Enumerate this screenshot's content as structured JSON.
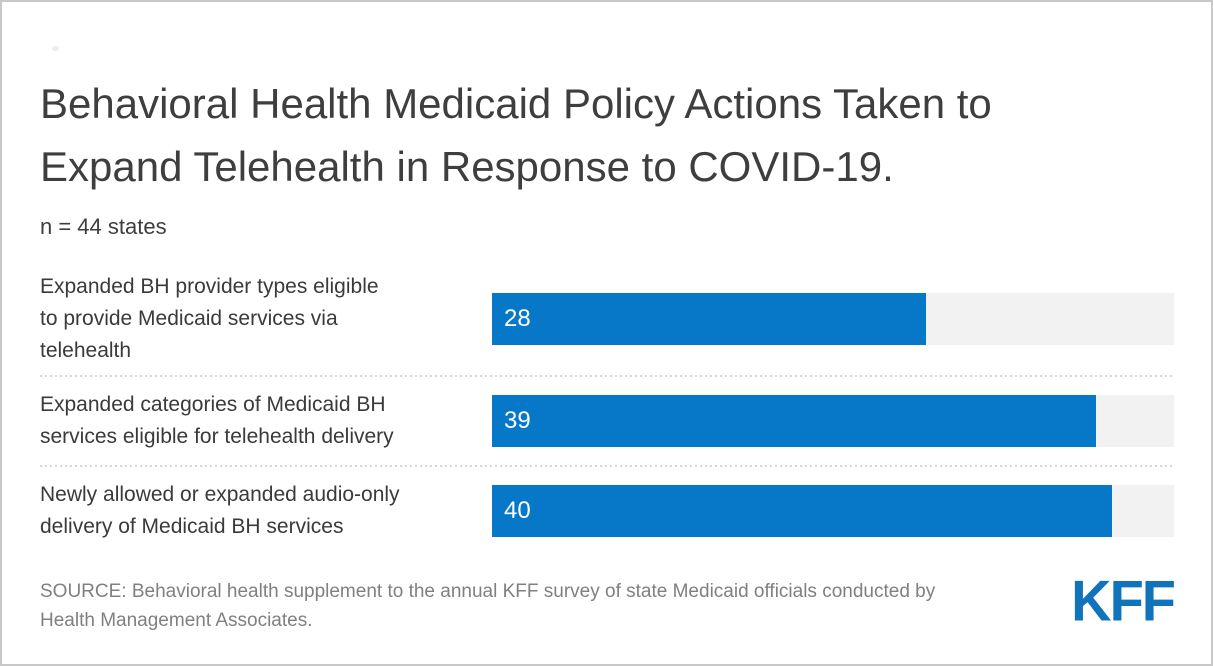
{
  "card": {
    "background": "#ffffff",
    "border_color": "#c8c8c8"
  },
  "header": {
    "title_lines": [
      "Behavioral Health Medicaid Policy Actions Taken to",
      "Expand Telehealth in Response to COVID-19."
    ],
    "subtitle": "n = 44 states"
  },
  "chart_data": {
    "type": "bar",
    "orientation": "horizontal",
    "title": "Behavioral Health Medicaid Policy Actions Taken to Expand Telehealth in Response to COVID-19.",
    "subtitle": "n = 44 states",
    "categories": [
      "Expanded BH provider types eligible\nto provide Medicaid services via\ntelehealth",
      "Expanded categories of Medicaid BH\nservices eligible for telehealth delivery",
      "Newly allowed or expanded audio-only\ndelivery of Medicaid BH services"
    ],
    "values": [
      28,
      39,
      40
    ],
    "xlim": [
      0,
      44
    ],
    "grid": false,
    "legend": false,
    "value_label_position": "inside-left",
    "value_label_color": "#ffffff",
    "bar_color": "#0778c8",
    "track_color": "#f2f2f2",
    "separator_color": "#d4d4d4",
    "label_color": "#3a3a3a",
    "title_color": "#3e3e3e"
  },
  "footer": {
    "source_text": "SOURCE: Behavioral health supplement to the annual KFF survey of state Medicaid officials conducted by\nHealth Management Associates.",
    "source_color": "#808080",
    "logo_text": "KFF",
    "logo_color": "#1173bb"
  }
}
